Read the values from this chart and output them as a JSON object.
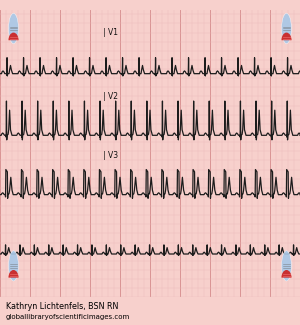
{
  "bg_color": "#f7d0cc",
  "grid_major_color": "#d89090",
  "grid_minor_color": "#eab8b8",
  "ecg_color": "#1c1c1c",
  "label_v1": "| V1",
  "label_v2": "| V2",
  "label_v3": "| V3",
  "credit_line1": "Kathryn Lichtenfels, BSN RN",
  "credit_line2": "globallibraryofscientificimages.com",
  "wm_blue": "#a8c8e8",
  "wm_red": "#cc2222",
  "wm_gray": "#aaaaaa"
}
